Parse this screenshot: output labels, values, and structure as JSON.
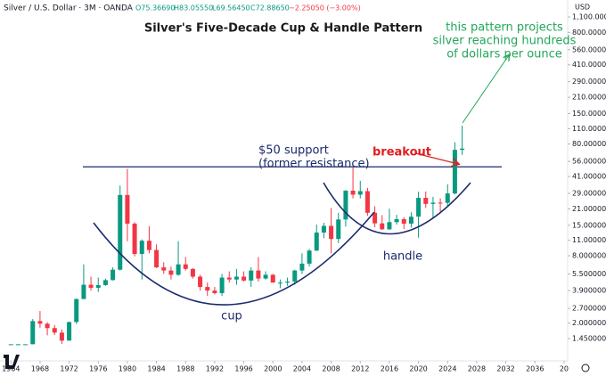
{
  "chart_data": {
    "type": "candlestick",
    "header": {
      "symbol": "Silver / U.S. Dollar · 3M · OANDA",
      "open": "O75.36690",
      "high": "H83.05550",
      "low": "L69.56450",
      "close": "C72.88650",
      "change": "−2.25050 (−3.00%)"
    },
    "title": "Silver's Five-Decade Cup & Handle Pattern",
    "y_axis_label": "USD",
    "annotations": {
      "support": [
        "$50 support",
        "(former resistance)"
      ],
      "breakout": "breakout",
      "projection": [
        "this pattern projects",
        "silver reaching hundreds",
        "of dollars per ounce"
      ],
      "cup": "cup",
      "handle": "handle"
    },
    "support_level": 50,
    "log_scale": true,
    "grid": false,
    "up_color": "#089981",
    "down_color": "#f23645",
    "x": [
      1964,
      1965,
      1966,
      1967,
      1968,
      1969,
      1970,
      1971,
      1972,
      1973,
      1974,
      1975,
      1976,
      1977,
      1978,
      1979,
      1980,
      1981,
      1982,
      1983,
      1984,
      1985,
      1986,
      1987,
      1988,
      1989,
      1990,
      1991,
      1992,
      1993,
      1994,
      1995,
      1996,
      1997,
      1998,
      1999,
      2000,
      2001,
      2002,
      2003,
      2004,
      2005,
      2006,
      2007,
      2008,
      2009,
      2010,
      2011,
      2012,
      2013,
      2014,
      2015,
      2016,
      2017,
      2018,
      2019,
      2020,
      2021,
      2022,
      2023,
      2024,
      2025,
      2026
    ],
    "open": [
      1.29,
      1.29,
      1.29,
      1.29,
      2.08,
      1.97,
      1.8,
      1.64,
      1.39,
      2.04,
      3.28,
      4.4,
      4.13,
      4.37,
      4.84,
      6,
      28,
      15.5,
      8.3,
      10.9,
      9,
      6.3,
      5.9,
      5.4,
      6.7,
      6.1,
      5.2,
      4.2,
      3.9,
      3.7,
      5.1,
      4.9,
      5.2,
      4.8,
      5.9,
      5,
      5.4,
      4.6,
      4.6,
      4.7,
      5.9,
      6.8,
      8.9,
      12.9,
      14.8,
      11.3,
      16.9,
      30.6,
      28.2,
      30.3,
      19.4,
      15.6,
      13.8,
      16,
      17,
      15.5,
      17.9,
      26.4,
      23.3,
      23.9,
      23.8,
      28.9,
      71
    ],
    "high": [
      1.29,
      1.29,
      1.29,
      2.17,
      2.56,
      2.03,
      1.92,
      1.75,
      2.05,
      3.3,
      6.7,
      5.2,
      5.1,
      5,
      6.3,
      34,
      48,
      16,
      11.2,
      14.7,
      10.1,
      7,
      6.4,
      10.8,
      7.8,
      6.2,
      5.4,
      4.6,
      4.2,
      5.5,
      5.8,
      6.1,
      5.8,
      6.3,
      7.8,
      5.8,
      5.5,
      4.9,
      5.1,
      6,
      8.4,
      9.2,
      15.2,
      15.8,
      21.4,
      19.4,
      31,
      49.8,
      37.5,
      32.4,
      22.2,
      18.5,
      21.1,
      18.6,
      17.7,
      19.6,
      29.9,
      30.1,
      26.9,
      26.1,
      34.9,
      83.1,
      117
    ],
    "low": [
      1.29,
      1.29,
      1.29,
      1.29,
      1.81,
      1.55,
      1.56,
      1.3,
      1.39,
      1.96,
      3.27,
      3.9,
      3.8,
      4.3,
      4.8,
      5.9,
      10.8,
      7.9,
      4.9,
      8.4,
      6.2,
      5.5,
      4.9,
      5.3,
      5.9,
      5,
      3.9,
      3.5,
      3.6,
      3.5,
      4.6,
      4.4,
      4.7,
      4.2,
      4.7,
      4.9,
      4.6,
      4.1,
      4.3,
      4.4,
      5.5,
      6.4,
      8.8,
      11.5,
      8.4,
      10.4,
      14.6,
      26.1,
      26.1,
      18.2,
      14.4,
      13.6,
      13.6,
      15.2,
      13.9,
      14.3,
      11.6,
      21.4,
      17.5,
      19.9,
      21.9,
      28.3,
      64
    ],
    "close": [
      1.29,
      1.29,
      1.29,
      2.08,
      1.97,
      1.8,
      1.64,
      1.39,
      2.04,
      3.28,
      4.4,
      4.13,
      4.37,
      4.84,
      6,
      28,
      15.5,
      8.3,
      10.9,
      9,
      6.3,
      5.9,
      5.4,
      6.7,
      6.1,
      5.2,
      4.2,
      3.9,
      3.7,
      5.1,
      4.9,
      5.2,
      4.8,
      5.9,
      5,
      5.4,
      4.6,
      4.6,
      4.7,
      5.9,
      6.8,
      8.9,
      12.9,
      14.8,
      11.3,
      16.9,
      30.6,
      28.2,
      30.3,
      19.4,
      15.6,
      13.8,
      16,
      17,
      15.5,
      17.9,
      26.4,
      23.3,
      23.9,
      23.8,
      28.9,
      71,
      72.9
    ],
    "xlim": [
      1962.5,
      2040.5
    ],
    "xticks": [
      1964,
      1968,
      1972,
      1976,
      1980,
      1984,
      1988,
      1992,
      1996,
      2000,
      2004,
      2008,
      2012,
      2016,
      2020,
      2024,
      2028,
      2032,
      2036,
      {
        "value": 2040,
        "label": "20"
      }
    ],
    "ylim": [
      0.916,
      1560
    ],
    "yticks": [
      {
        "value": 1100,
        "label": "1,100.000000"
      },
      {
        "value": 800,
        "label": "800.000000"
      },
      {
        "value": 560,
        "label": "560.000000"
      },
      {
        "value": 410,
        "label": "410.000000"
      },
      {
        "value": 290,
        "label": "290.000000"
      },
      {
        "value": 210,
        "label": "210.000000"
      },
      {
        "value": 150,
        "label": "150.000000"
      },
      {
        "value": 110,
        "label": "110.000000"
      },
      {
        "value": 80,
        "label": "80.000000"
      },
      {
        "value": 56,
        "label": "56.000000"
      },
      {
        "value": 41,
        "label": "41.000000"
      },
      {
        "value": 29,
        "label": "29.000000"
      },
      {
        "value": 21,
        "label": "21.000000"
      },
      {
        "value": 15,
        "label": "15.000000"
      },
      {
        "value": 11,
        "label": "11.000000"
      },
      {
        "value": 8,
        "label": "8.000000"
      },
      {
        "value": 5.5,
        "label": "5.500000"
      },
      {
        "value": 3.9,
        "label": "3.900000"
      },
      {
        "value": 2.7,
        "label": "2.700000"
      },
      {
        "value": 2,
        "label": "2.000000"
      },
      {
        "value": 1.45,
        "label": "1.450000"
      }
    ]
  }
}
